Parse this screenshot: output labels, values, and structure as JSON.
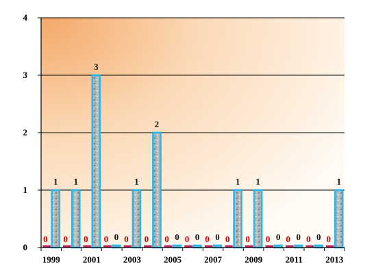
{
  "chart_data": {
    "type": "bar",
    "categories": [
      "1999",
      "2000",
      "2001",
      "2002",
      "2003",
      "2004",
      "2005",
      "2006",
      "2007",
      "2008",
      "2009",
      "2010",
      "2011",
      "2012",
      "2013"
    ],
    "x_tick_labels": [
      "1999",
      "2001",
      "2003",
      "2005",
      "2007",
      "2009",
      "2011",
      "2013"
    ],
    "y_tick_labels": [
      "0",
      "1",
      "2",
      "3",
      "4"
    ],
    "ylim": [
      0,
      4
    ],
    "grid": true,
    "series": [
      {
        "values": [
          0,
          0,
          0,
          0,
          0,
          0,
          0,
          0,
          0,
          0,
          0,
          0,
          0,
          0,
          0
        ],
        "color": "#c2185b"
      },
      {
        "values": [
          1,
          1,
          3,
          0,
          1,
          2,
          0,
          0,
          0,
          1,
          1,
          0,
          0,
          0,
          1
        ],
        "color": "#29b6e8"
      }
    ],
    "background_gradient": [
      "#f4a868",
      "#fffaf3"
    ]
  }
}
